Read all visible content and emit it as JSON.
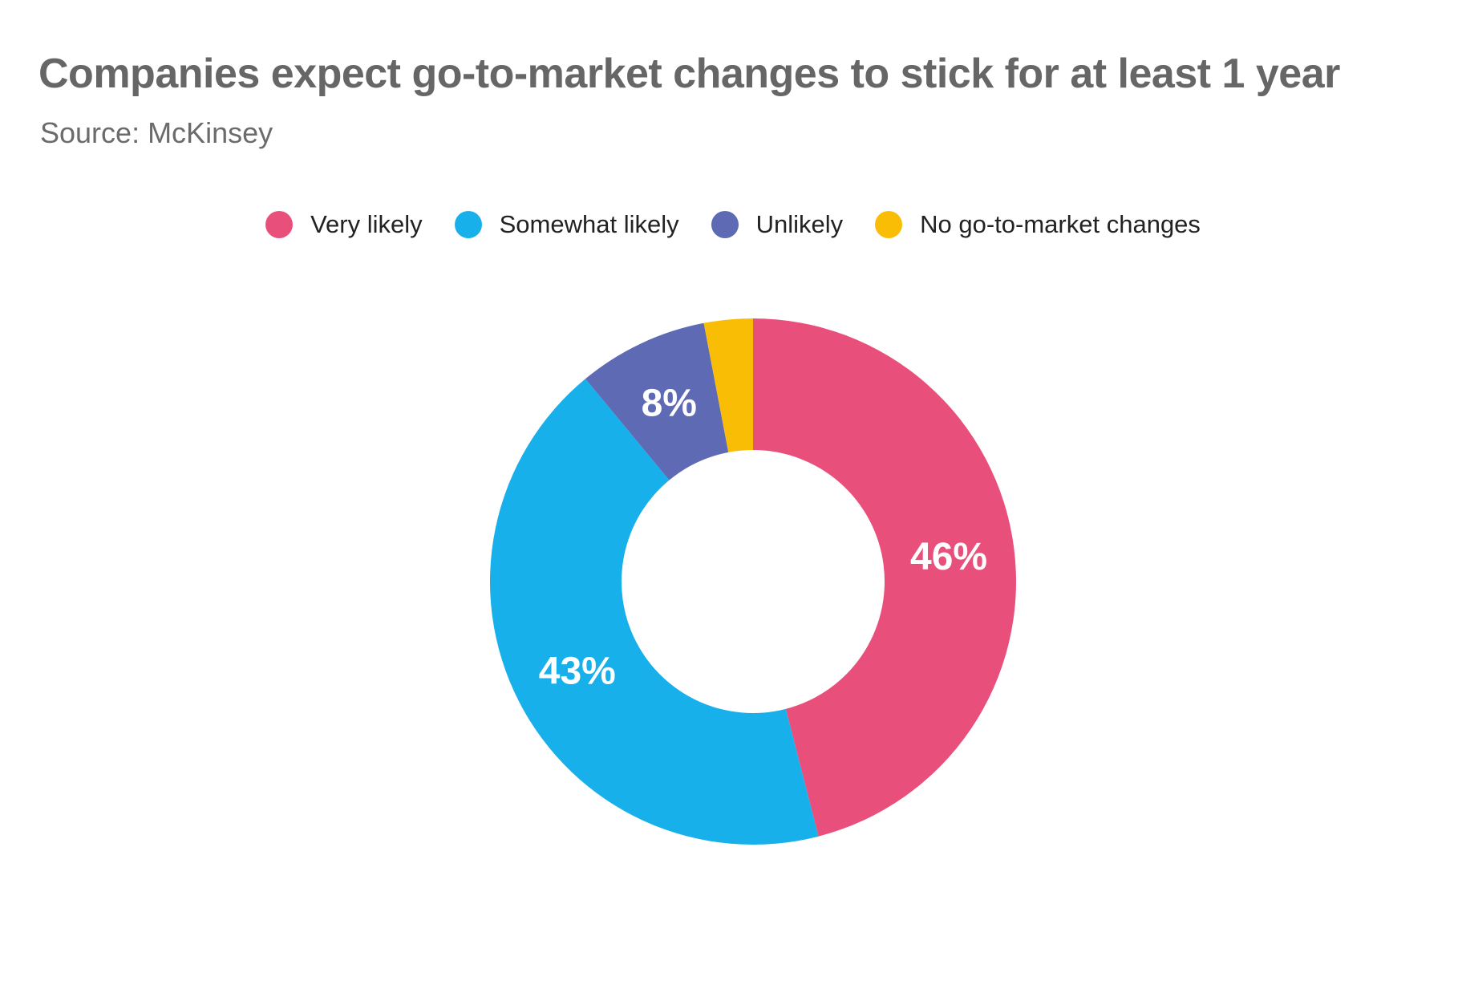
{
  "chart_data": {
    "type": "pie",
    "donut": true,
    "title": "Companies expect go-to-market changes to stick for at least 1 year",
    "subtitle": "Source: McKinsey",
    "legend_position": "top",
    "categories": [
      "Very likely",
      "Somewhat likely",
      "Unlikely",
      "No go-to-market changes"
    ],
    "values": [
      46,
      43,
      8,
      3
    ],
    "data_labels": [
      "46%",
      "43%",
      "8%",
      ""
    ],
    "colors": [
      "#e8507b",
      "#18b0ea",
      "#5f6ab5",
      "#f9bd05"
    ]
  }
}
